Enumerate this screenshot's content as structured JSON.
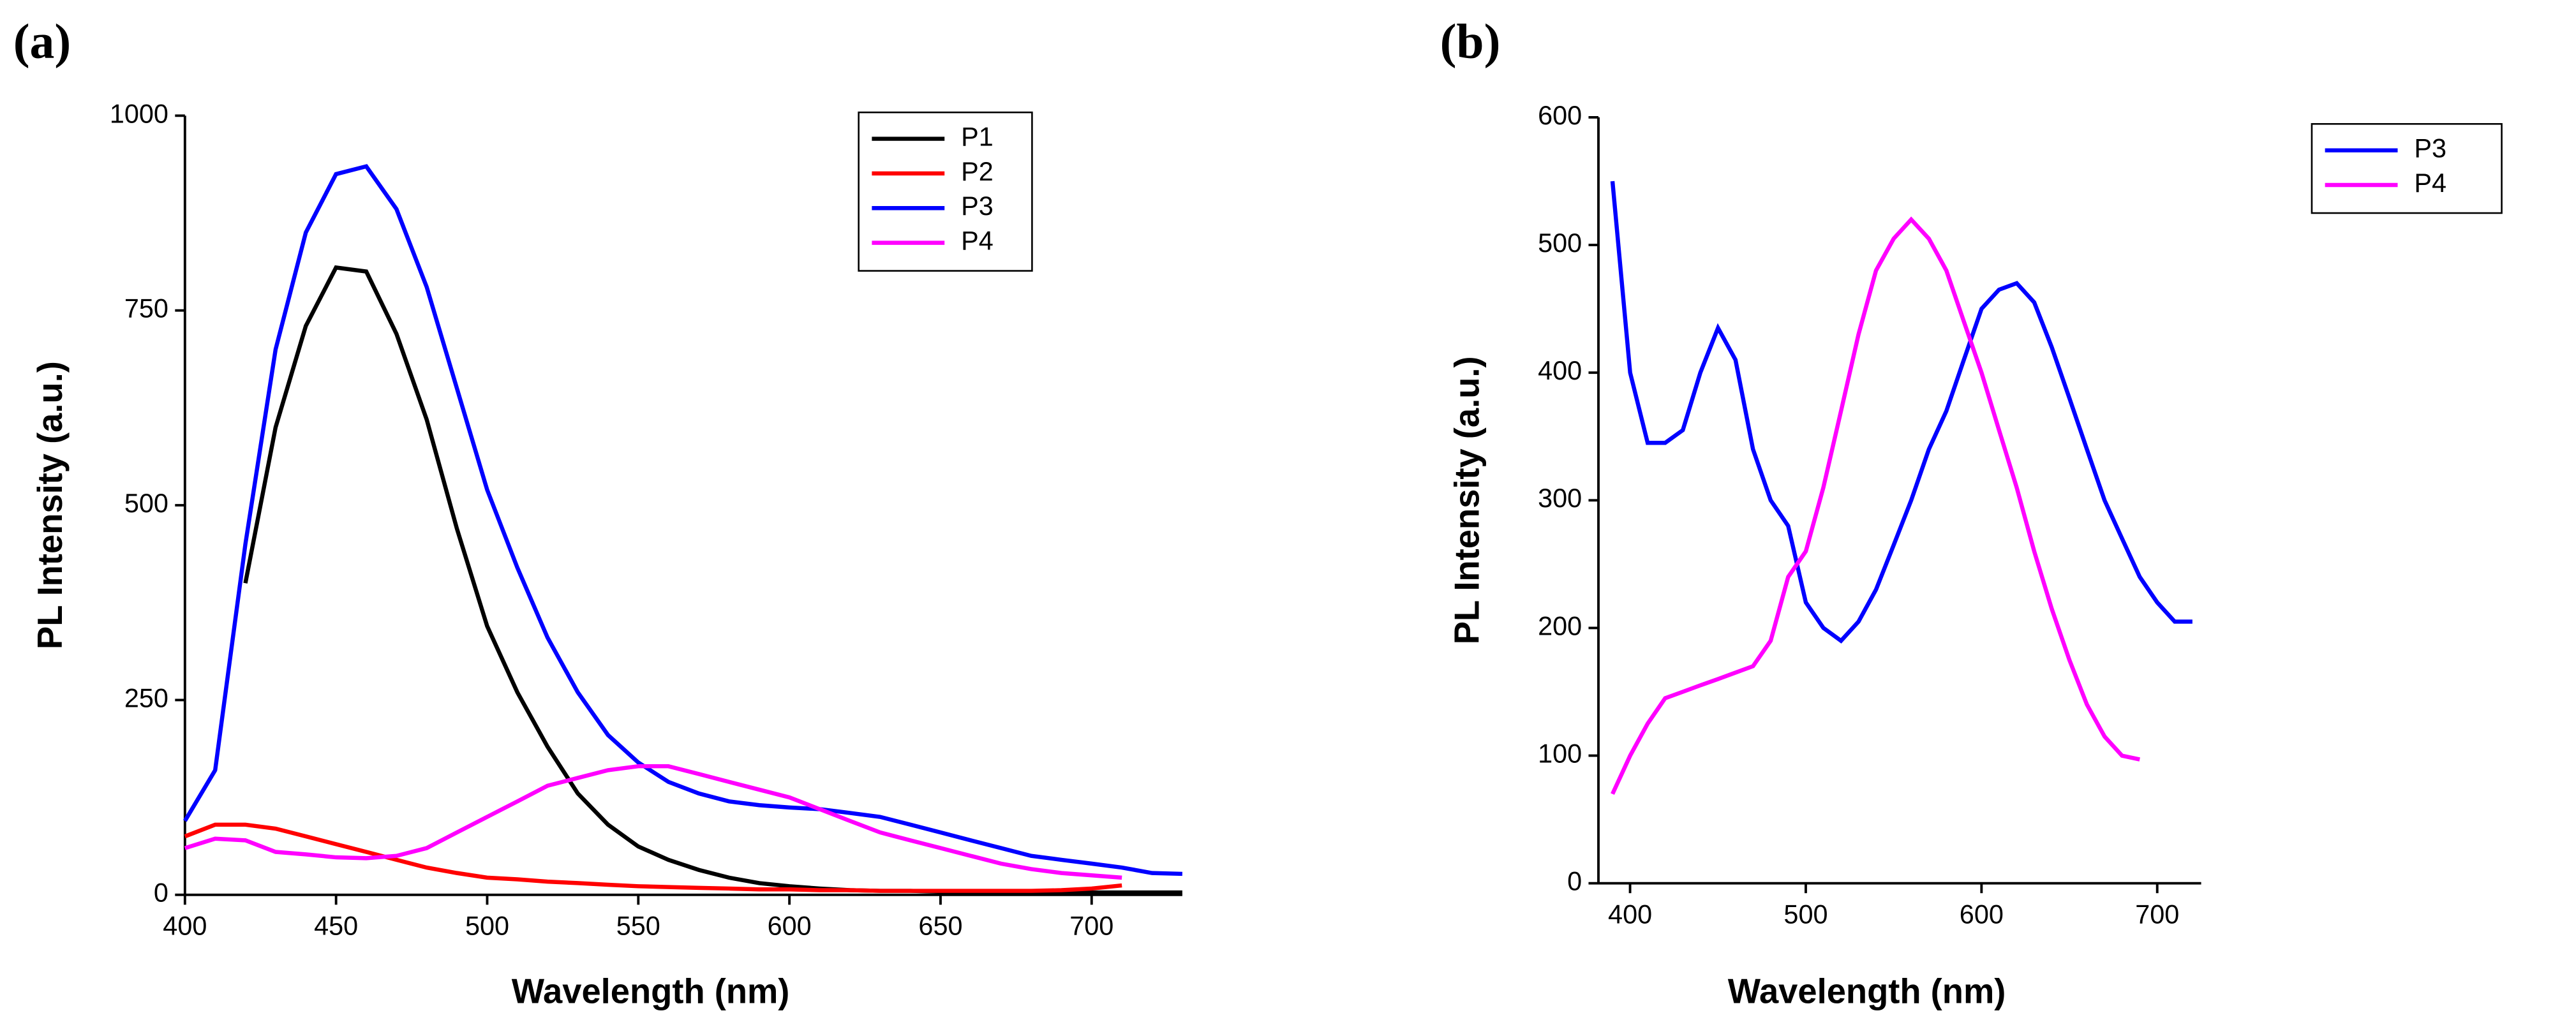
{
  "chart_data": [
    {
      "type": "line",
      "panel_label": "(a)",
      "xlabel": "Wavelength (nm)",
      "ylabel": "PL Intensity (a.u.)",
      "x": [
        400,
        410,
        420,
        430,
        440,
        450,
        460,
        470,
        480,
        490,
        500,
        510,
        520,
        530,
        540,
        550,
        560,
        570,
        580,
        590,
        600,
        610,
        620,
        630,
        640,
        650,
        660,
        670,
        680,
        690,
        700,
        710,
        720,
        730
      ],
      "xlim": [
        400,
        730
      ],
      "xticks": [
        400,
        450,
        500,
        550,
        600,
        650,
        700
      ],
      "ylim": [
        0,
        1000
      ],
      "yticks": [
        0,
        250,
        500,
        750,
        1000
      ],
      "legend": "upper right",
      "series": [
        {
          "name": "P1",
          "color": "#000000",
          "values": [
            null,
            null,
            400,
            600,
            730,
            805,
            800,
            720,
            610,
            470,
            345,
            260,
            190,
            130,
            90,
            62,
            45,
            32,
            22,
            15,
            11,
            8,
            6,
            5,
            5,
            4,
            4,
            4,
            3,
            3,
            3,
            3,
            3,
            3
          ]
        },
        {
          "name": "P2",
          "color": "#ff0000",
          "values": [
            75,
            90,
            90,
            85,
            75,
            65,
            55,
            45,
            35,
            28,
            22,
            20,
            17,
            15,
            13,
            11,
            10,
            9,
            8,
            7,
            7,
            6,
            6,
            5,
            5,
            5,
            5,
            5,
            5,
            6,
            8,
            12,
            null,
            null
          ]
        },
        {
          "name": "P3",
          "color": "#0000ff",
          "values": [
            95,
            160,
            450,
            700,
            850,
            925,
            935,
            880,
            780,
            650,
            520,
            420,
            330,
            260,
            205,
            170,
            145,
            130,
            120,
            115,
            112,
            110,
            105,
            100,
            90,
            80,
            70,
            60,
            50,
            45,
            40,
            35,
            28,
            27
          ]
        },
        {
          "name": "P4",
          "color": "#ff00ff",
          "values": [
            60,
            72,
            70,
            55,
            52,
            48,
            47,
            50,
            60,
            80,
            100,
            120,
            140,
            150,
            160,
            165,
            165,
            155,
            145,
            135,
            125,
            110,
            95,
            80,
            70,
            60,
            50,
            40,
            33,
            28,
            25,
            22,
            null,
            null
          ]
        }
      ]
    },
    {
      "type": "line",
      "panel_label": "(b)",
      "xlabel": "Wavelength (nm)",
      "ylabel": "PL Intensity (a.u.)",
      "x": [
        390,
        400,
        410,
        420,
        430,
        440,
        450,
        460,
        470,
        480,
        490,
        500,
        510,
        520,
        530,
        540,
        550,
        560,
        570,
        580,
        590,
        600,
        610,
        620,
        630,
        640,
        650,
        660,
        670,
        680,
        690,
        700,
        710,
        720
      ],
      "xlim": [
        382,
        725
      ],
      "xticks": [
        400,
        500,
        600,
        700
      ],
      "ylim": [
        0,
        600
      ],
      "yticks": [
        0,
        100,
        200,
        300,
        400,
        500,
        600
      ],
      "legend": "upper right",
      "series": [
        {
          "name": "P3",
          "color": "#0000ff",
          "values": [
            550,
            400,
            345,
            345,
            355,
            400,
            435,
            410,
            340,
            300,
            280,
            220,
            200,
            190,
            205,
            230,
            265,
            300,
            340,
            370,
            410,
            450,
            465,
            470,
            455,
            420,
            380,
            340,
            300,
            270,
            240,
            220,
            205,
            205
          ]
        },
        {
          "name": "P4",
          "color": "#ff00ff",
          "values": [
            70,
            100,
            125,
            145,
            150,
            155,
            160,
            165,
            170,
            190,
            240,
            260,
            310,
            370,
            430,
            480,
            505,
            520,
            505,
            480,
            440,
            400,
            355,
            310,
            260,
            215,
            175,
            140,
            115,
            100,
            97,
            null,
            null,
            null
          ]
        }
      ]
    }
  ]
}
